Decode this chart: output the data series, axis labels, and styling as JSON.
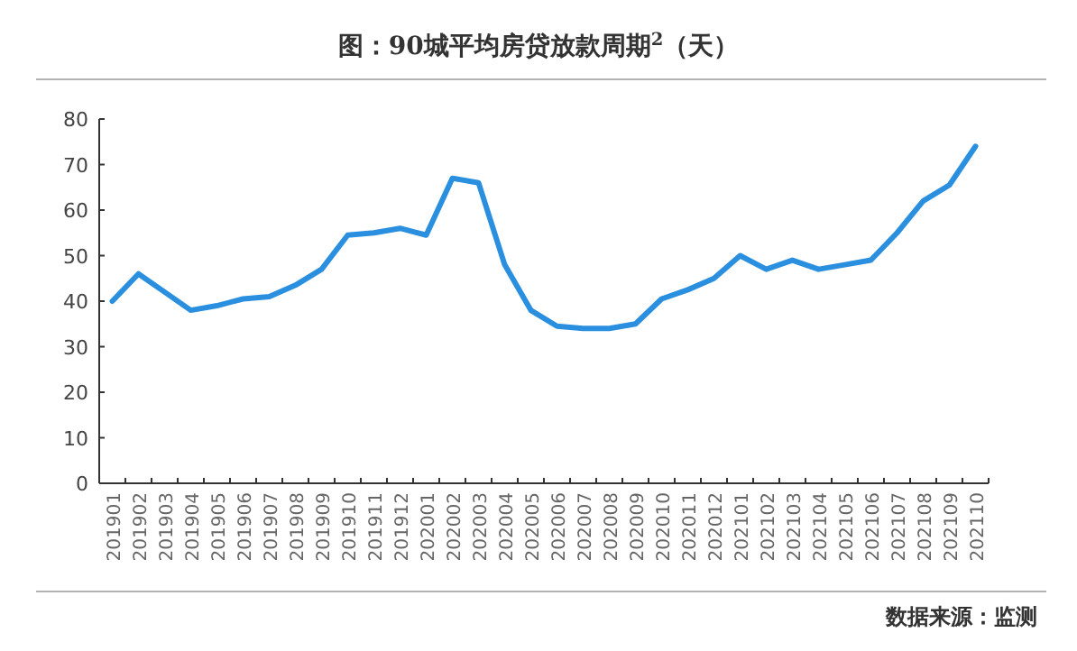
{
  "chart_data": {
    "type": "line",
    "title": "图：90城平均房贷放款周期$^{2}$（天）",
    "annotations": [
      "数据来源：监测"
    ],
    "categories": [
      "201901",
      "201902",
      "201903",
      "201904",
      "201905",
      "201906",
      "201907",
      "201908",
      "201909",
      "201910",
      "201911",
      "201912",
      "202001",
      "202002",
      "202003",
      "202004",
      "202005",
      "202006",
      "202007",
      "202008",
      "202009",
      "202010",
      "202011",
      "202012",
      "202101",
      "202102",
      "202103",
      "202104",
      "202105",
      "202106",
      "202107",
      "202108",
      "202109",
      "202110"
    ],
    "series": [
      {
        "color": "#2b8fe0",
        "values": [
          40,
          46,
          42,
          38,
          39,
          40.5,
          41,
          43.5,
          47,
          54.5,
          55,
          56,
          54.5,
          67,
          66,
          48,
          38,
          34.5,
          34,
          34,
          35,
          40.5,
          42.5,
          45,
          50,
          47,
          49,
          47,
          48,
          49,
          55,
          62,
          65.5,
          74
        ]
      }
    ],
    "ylim": [
      0,
      80
    ],
    "yticks": [
      0,
      10,
      20,
      30,
      40,
      50,
      60,
      70,
      80
    ],
    "marker": "none",
    "line_style": "solid",
    "grid": false
  }
}
